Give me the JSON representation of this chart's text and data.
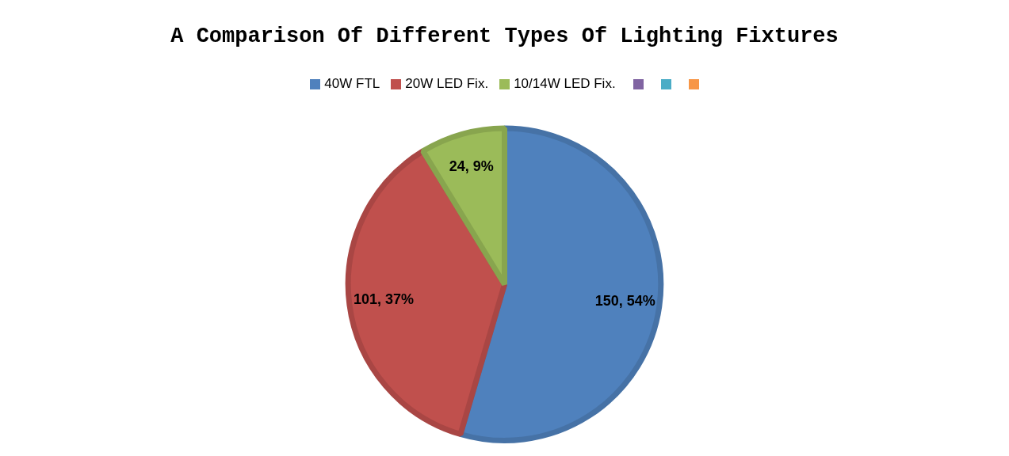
{
  "chart_data": {
    "type": "pie",
    "title": "A Comparison Of Different Types Of Lighting Fixtures",
    "categories": [
      "40W FTL",
      "20W LED Fix.",
      "10/14W LED Fix.",
      null,
      null,
      null
    ],
    "values": [
      150,
      101,
      24,
      null,
      null,
      null
    ],
    "value_labels": [
      "150, 54%",
      "101, 37%",
      "24, 9%",
      null,
      null,
      null
    ],
    "colors": [
      "#4f81bd",
      "#c0504d",
      "#9bbb59",
      "#8064a2",
      "#4bacc6",
      "#f79646"
    ],
    "legend": "top"
  }
}
